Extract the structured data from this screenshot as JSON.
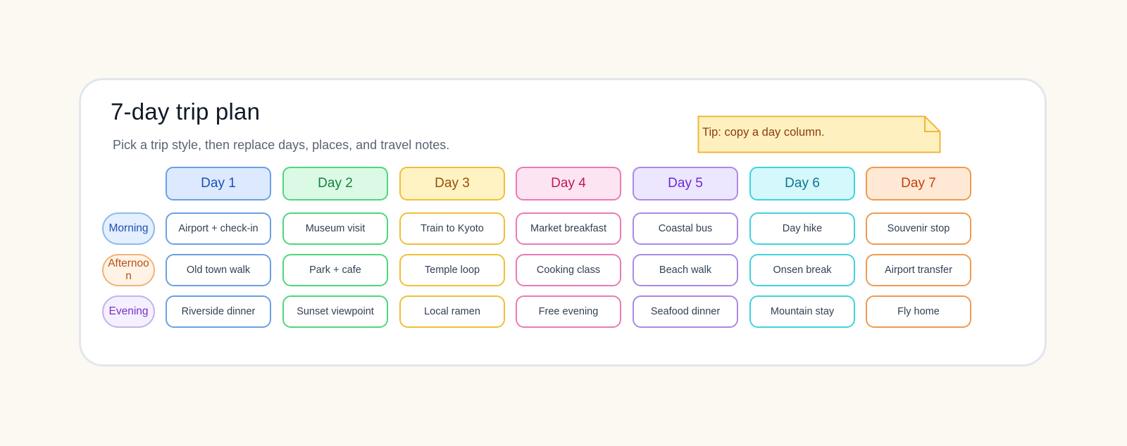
{
  "title": "7-day trip plan",
  "subtitle": "Pick a trip style, then replace days, places, and travel notes.",
  "tip": "Tip: copy a day column.",
  "colors": {
    "background": "#fcf9f2",
    "tip_fill": "#fff1bf",
    "tip_border": "#f0b63a"
  },
  "rows": [
    {
      "label": "Morning",
      "color": "#1e4fb5",
      "fill": "#e4efff",
      "border": "#8fbbea"
    },
    {
      "label": "Afternoon",
      "color": "#b5521b",
      "fill": "#fff3e6",
      "border": "#f0b47a"
    },
    {
      "label": "Evening",
      "color": "#7b2fc8",
      "fill": "#f5f0ff",
      "border": "#c6b2ec"
    }
  ],
  "days": [
    {
      "label": "Day 1",
      "text_color": "#1e4fb5",
      "fill": "#dce9ff",
      "border": "#6aa0e4",
      "items": [
        "Airport + check-in",
        "Old town walk",
        "Riverside dinner"
      ]
    },
    {
      "label": "Day 2",
      "text_color": "#15803d",
      "fill": "#dbfae6",
      "border": "#4fd67d",
      "items": [
        "Museum visit",
        "Park + cafe",
        "Sunset viewpoint"
      ]
    },
    {
      "label": "Day 3",
      "text_color": "#9a4d08",
      "fill": "#fff3c4",
      "border": "#f0bf38",
      "items": [
        "Train to Kyoto",
        "Temple loop",
        "Local ramen"
      ]
    },
    {
      "label": "Day 4",
      "text_color": "#be185d",
      "fill": "#fde4f2",
      "border": "#ea7ab5",
      "items": [
        "Market breakfast",
        "Cooking class",
        "Free evening"
      ]
    },
    {
      "label": "Day 5",
      "text_color": "#6d28d9",
      "fill": "#ede6ff",
      "border": "#a98ae6",
      "items": [
        "Coastal bus",
        "Beach walk",
        "Seafood dinner"
      ]
    },
    {
      "label": "Day 6",
      "text_color": "#0e7490",
      "fill": "#d4f8fb",
      "border": "#3fd3de",
      "items": [
        "Day hike",
        "Onsen break",
        "Mountain stay"
      ]
    },
    {
      "label": "Day 7",
      "text_color": "#c2410c",
      "fill": "#ffe9d4",
      "border": "#f09a4e",
      "items": [
        "Souvenir stop",
        "Airport transfer",
        "Fly home"
      ]
    }
  ]
}
